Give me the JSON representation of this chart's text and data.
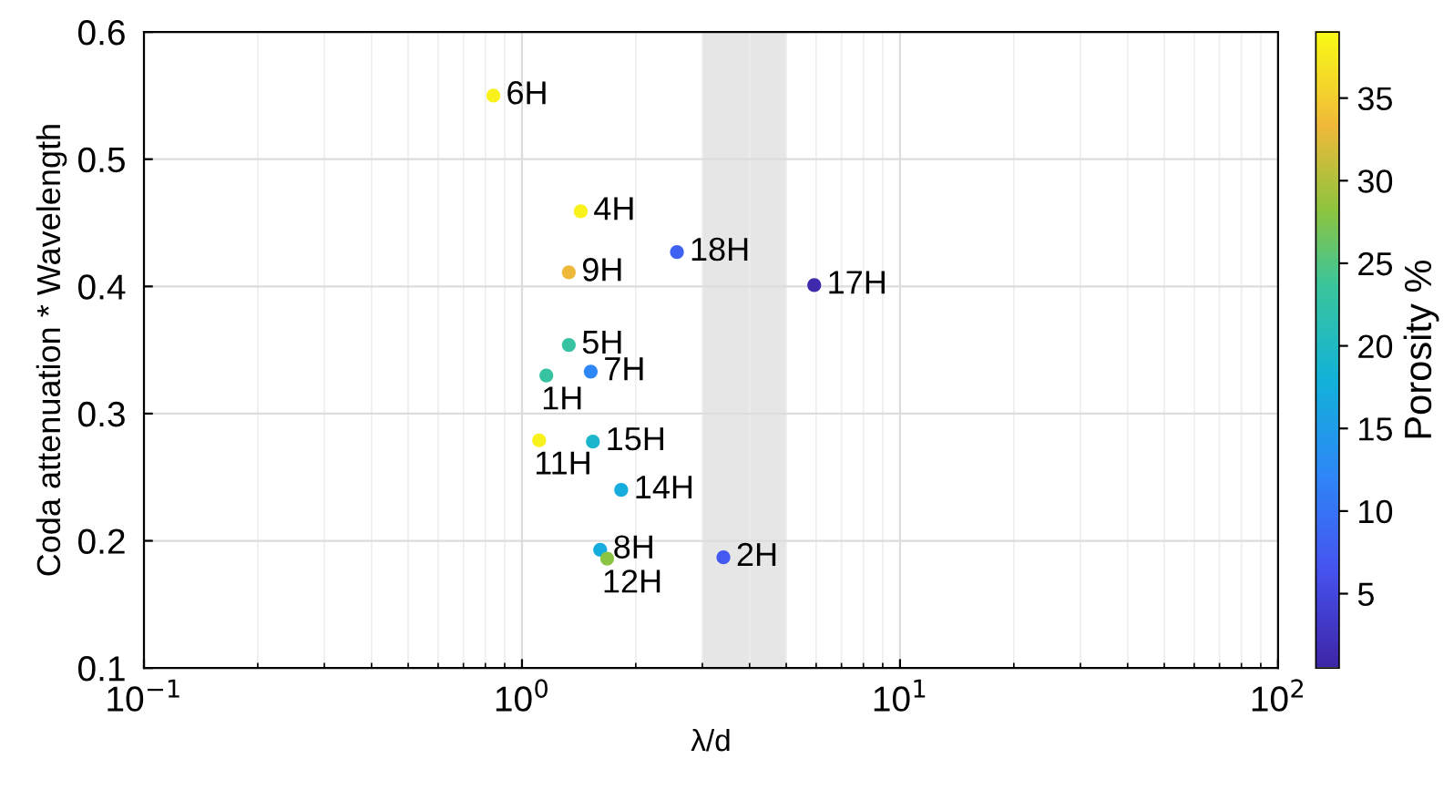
{
  "chart_data": {
    "type": "scatter",
    "xlabel": "λ/d",
    "ylabel": "Coda attenuation * Wavelength",
    "clabel": "Porosity %",
    "x": [
      0.84,
      1.43,
      2.57,
      1.33,
      5.93,
      1.33,
      1.52,
      1.16,
      1.11,
      1.54,
      1.83,
      1.61,
      1.68,
      3.41
    ],
    "values": [
      0.55,
      0.459,
      0.427,
      0.411,
      0.401,
      0.354,
      0.333,
      0.33,
      0.279,
      0.278,
      0.24,
      0.193,
      0.186,
      0.187
    ],
    "cvalues": [
      38,
      38,
      8,
      33,
      1,
      23,
      12,
      23,
      38,
      19,
      17,
      17,
      28,
      7
    ],
    "clim": [
      0.5,
      39
    ],
    "cticks": [
      5,
      10,
      15,
      20,
      25,
      30,
      35
    ],
    "log": "x",
    "xlim": [
      0.1,
      100
    ],
    "xticks": [
      {
        "value": 0.1,
        "label": "10$^{−1}$"
      },
      {
        "value": 1,
        "label": "10$^{0}$"
      },
      {
        "value": 10,
        "label": "10$^{1}$"
      },
      {
        "value": 100,
        "label": "10$^{2}$"
      }
    ],
    "ylim": [
      0.1,
      0.6
    ],
    "yticks": [
      0.1,
      0.2,
      0.3,
      0.4,
      0.5,
      0.6
    ],
    "grid": true,
    "marker": "circle",
    "legend": false,
    "bands": [
      {
        "axis": "x",
        "from": 3,
        "to": 5,
        "color": "#e6e6e6"
      }
    ],
    "annotations": [
      {
        "text": "6H",
        "x": 0.84,
        "y": 0.55
      },
      {
        "text": "4H",
        "x": 1.43,
        "y": 0.459
      },
      {
        "text": "18H",
        "x": 2.57,
        "y": 0.427
      },
      {
        "text": "9H",
        "x": 1.33,
        "y": 0.411
      },
      {
        "text": "17H",
        "x": 5.93,
        "y": 0.401
      },
      {
        "text": "5H",
        "x": 1.33,
        "y": 0.354
      },
      {
        "text": "7H",
        "x": 1.52,
        "y": 0.333
      },
      {
        "text": "1H",
        "x": 1.16,
        "y": 0.33
      },
      {
        "text": "11H",
        "x": 1.11,
        "y": 0.279
      },
      {
        "text": "15H",
        "x": 1.54,
        "y": 0.278
      },
      {
        "text": "14H",
        "x": 1.83,
        "y": 0.24
      },
      {
        "text": "8H",
        "x": 1.61,
        "y": 0.193
      },
      {
        "text": "12H",
        "x": 1.68,
        "y": 0.186
      },
      {
        "text": "2H",
        "x": 3.41,
        "y": 0.187
      }
    ]
  }
}
